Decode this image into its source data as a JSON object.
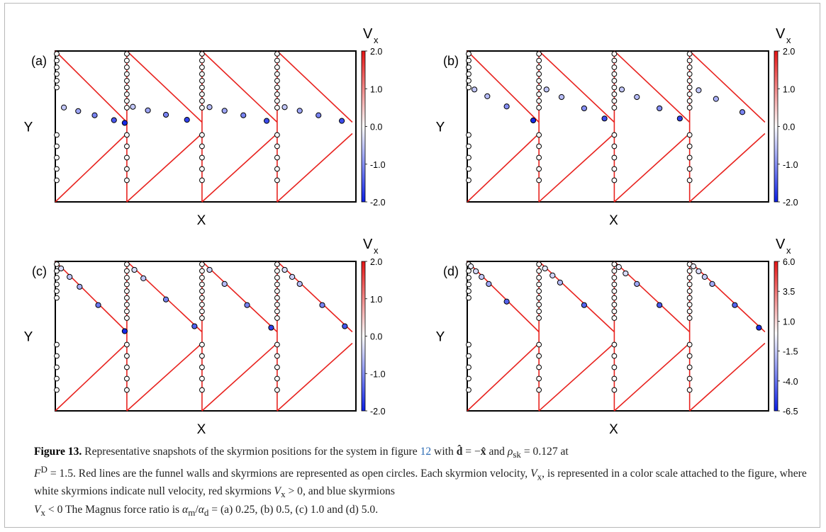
{
  "figure": {
    "colorbar_title": "V",
    "colorbar_title_sub": "x",
    "axis_x_label": "X",
    "axis_y_label": "Y",
    "colors": {
      "wall": "#e8231f",
      "frame": "#000000",
      "neg": "#0a1ee6",
      "pos": "#e61414",
      "neutral": "#ffffff"
    }
  },
  "chart_data": [
    {
      "type": "scatter",
      "panel": "(a)",
      "xlabel": "X",
      "ylabel": "Y",
      "colorbar": {
        "label": "Vx",
        "ticks": [
          "2.0",
          "1.0",
          "0.0",
          "-1.0",
          "-2.0"
        ],
        "range": [
          -2,
          2
        ]
      },
      "wall_points": [
        0.0,
        0.19,
        0.4,
        0.6,
        0.8
      ],
      "moving_skyrmions": [
        {
          "period": 0,
          "fracs": [
            0.12,
            0.32,
            0.55,
            0.82,
            0.97
          ],
          "vx": [
            -0.5,
            -0.8,
            -1.1,
            -1.5,
            -1.9
          ]
        },
        {
          "period": 1,
          "fracs": [
            0.08,
            0.28,
            0.52,
            0.8
          ],
          "vx": [
            -0.5,
            -0.8,
            -1.1,
            -1.7
          ]
        },
        {
          "period": 2,
          "fracs": [
            0.1,
            0.3,
            0.55,
            0.86
          ],
          "vx": [
            -0.6,
            -0.8,
            -1.1,
            -1.6
          ]
        },
        {
          "period": 3,
          "fracs": [
            0.1,
            0.3,
            0.55,
            0.86
          ],
          "vx": [
            -0.5,
            -0.8,
            -1.1,
            -1.6
          ]
        }
      ]
    },
    {
      "type": "scatter",
      "panel": "(b)",
      "xlabel": "X",
      "ylabel": "Y",
      "colorbar": {
        "label": "Vx",
        "ticks": [
          "2.0",
          "1.0",
          "0.0",
          "-1.0",
          "-2.0"
        ],
        "range": [
          -2,
          2
        ]
      },
      "wall_points": [
        0.0,
        0.19,
        0.4,
        0.6,
        0.8
      ],
      "moving_skyrmions": [
        {
          "period": 0,
          "fracs": [
            0.1,
            0.28,
            0.55,
            0.92
          ],
          "vx": [
            -0.5,
            -0.6,
            -1.0,
            -1.9
          ]
        },
        {
          "period": 1,
          "fracs": [
            0.1,
            0.3,
            0.6,
            0.87
          ],
          "vx": [
            -0.5,
            -0.6,
            -1.0,
            -1.6
          ]
        },
        {
          "period": 2,
          "fracs": [
            0.1,
            0.3,
            0.6,
            0.87
          ],
          "vx": [
            -0.5,
            -0.6,
            -1.0,
            -1.7
          ]
        },
        {
          "period": 3,
          "fracs": [
            0.12,
            0.35,
            0.7
          ],
          "vx": [
            -0.5,
            -0.7,
            -1.1
          ]
        }
      ]
    },
    {
      "type": "scatter",
      "panel": "(c)",
      "xlabel": "X",
      "ylabel": "Y",
      "colorbar": {
        "label": "Vx",
        "ticks": [
          "2.0",
          "1.0",
          "0.0",
          "-1.0",
          "-2.0"
        ],
        "range": [
          -2,
          2
        ]
      },
      "wall_points": [
        0.0,
        0.19,
        0.4,
        0.6,
        0.8
      ],
      "moving_skyrmions": [
        {
          "period": 0,
          "fracs": [
            0.08,
            0.2,
            0.34,
            0.6,
            0.97
          ],
          "vx": [
            -0.3,
            -0.5,
            -0.7,
            -1.2,
            -1.9
          ]
        },
        {
          "period": 1,
          "fracs": [
            0.1,
            0.22,
            0.52,
            0.9
          ],
          "vx": [
            -0.3,
            -0.5,
            -1.1,
            -1.4
          ]
        },
        {
          "period": 2,
          "fracs": [
            0.1,
            0.3,
            0.6,
            0.92
          ],
          "vx": [
            -0.4,
            -0.6,
            -1.1,
            -1.7
          ]
        },
        {
          "period": 3,
          "fracs": [
            0.1,
            0.2,
            0.3,
            0.6,
            0.9
          ],
          "vx": [
            -0.3,
            -0.4,
            -0.6,
            -1.1,
            -1.5
          ]
        }
      ]
    },
    {
      "type": "scatter",
      "panel": "(d)",
      "xlabel": "X",
      "ylabel": "Y",
      "colorbar": {
        "label": "Vx",
        "ticks": [
          "6.0",
          "3.5",
          "1.0",
          "-1.5",
          "-4.0",
          "-6.5"
        ],
        "range": [
          -6.5,
          6.0
        ]
      },
      "wall_points": [
        0.0,
        0.19,
        0.4,
        0.6,
        0.8
      ],
      "moving_skyrmions": [
        {
          "period": 0,
          "fracs": [
            0.05,
            0.12,
            0.2,
            0.3,
            0.55
          ],
          "vx": [
            -0.5,
            -1,
            -1.5,
            -2.5,
            -4.5
          ]
        },
        {
          "period": 1,
          "fracs": [
            0.08,
            0.18,
            0.28,
            0.6
          ],
          "vx": [
            -0.6,
            -1.2,
            -2.0,
            -4.5
          ]
        },
        {
          "period": 2,
          "fracs": [
            0.06,
            0.15,
            0.3,
            0.6
          ],
          "vx": [
            -0.5,
            -1.0,
            -2.5,
            -4.8
          ]
        },
        {
          "period": 3,
          "fracs": [
            0.05,
            0.12,
            0.2,
            0.3,
            0.6,
            0.92
          ],
          "vx": [
            -0.5,
            -1,
            -1.5,
            -2.5,
            -4.5,
            -6.0
          ]
        }
      ]
    }
  ],
  "caption": {
    "label": "Figure 13.",
    "p1": " Representative snapshots of the skyrmion positions for the system in figure ",
    "ref": "12",
    "p2": " with ",
    "p3": " = −",
    "p4": " and ",
    "p5": " = 0.127 at",
    "p6": " = 1.5. Red lines are the funnel walls and skyrmions are represented as open circles. Each skyrmion velocity, ",
    "p7": ", is represented in a color scale attached to the figure, where white skyrmions indicate null velocity, red skyrmions ",
    "p8": " > 0, and blue skyrmions",
    "p9": " < 0 The Magnus force ratio is ",
    "p10": " = (a) 0.25, (b) 0.5, (c) 1.0 and (d) 5.0.",
    "sym_d": "d̂",
    "sym_x": "x̂",
    "sym_rho": "ρ",
    "sub_sk": "sk",
    "sym_F": "F",
    "sup_D": "D",
    "sym_V": "V",
    "sub_x": "x",
    "sym_am": "α",
    "sub_m": "m",
    "slash": "/",
    "sym_ad": "α",
    "sub_d": "d"
  }
}
